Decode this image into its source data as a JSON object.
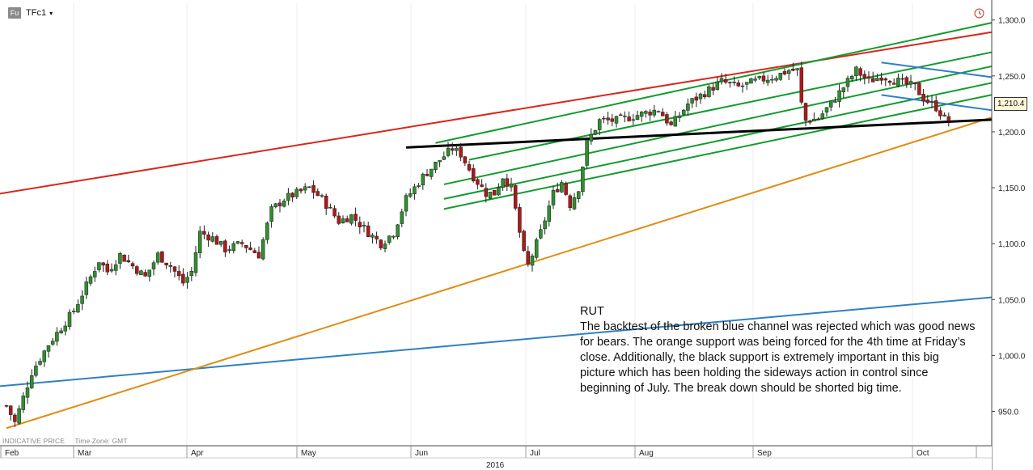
{
  "toolbar": {
    "badge": "Fu",
    "symbol": "TFc1",
    "caret": "▾",
    "clock_icon": "clock-icon"
  },
  "footer": {
    "indicative": "INDICATIVE PRICE",
    "timezone": "Time Zone: GMT"
  },
  "price_tag": "1,210.4",
  "annotation": {
    "title": "RUT",
    "body": "The backtest of the broken blue channel was rejected which was good news for bears. The orange support was being forced for the 4th time at Friday’s close. Additionally, the black support is extremely important in this big picture which has been holding the sideways action in control since beginning of July. The break down should be shorted big time."
  },
  "colors": {
    "up": "#2f8f2f",
    "down": "#b01818",
    "red_line": "#d8261c",
    "green_lines": "#139a2e",
    "blue_lines": "#2f7fc4",
    "orange_line": "#e08c12",
    "black_line": "#000000",
    "axis": "#444444"
  },
  "chart_data": {
    "type": "candlestick",
    "year_label": "2016",
    "x_month_labels": [
      "Feb",
      "Mar",
      "Apr",
      "May",
      "Jun",
      "Jul",
      "Aug",
      "Sep",
      "Oct"
    ],
    "y_tick_labels": [
      "1,300.0",
      "1,250.0",
      "1,200.0",
      "1,150.0",
      "1,100.0",
      "1,050.0",
      "1,000.0",
      "950.0"
    ],
    "y_ticks": [
      1300,
      1250,
      1200,
      1150,
      1100,
      1050,
      1000,
      950
    ],
    "ylim": [
      920,
      1315
    ],
    "last_price": 1210.4,
    "close_path": [
      [
        0,
        955
      ],
      [
        2,
        940
      ],
      [
        6,
        985
      ],
      [
        10,
        1010
      ],
      [
        16,
        1040
      ],
      [
        20,
        1070
      ],
      [
        22,
        1085
      ],
      [
        24,
        1075
      ],
      [
        27,
        1090
      ],
      [
        30,
        1080
      ],
      [
        33,
        1070
      ],
      [
        36,
        1090
      ],
      [
        39,
        1080
      ],
      [
        42,
        1065
      ],
      [
        44,
        1075
      ],
      [
        46,
        1110
      ],
      [
        49,
        1105
      ],
      [
        52,
        1095
      ],
      [
        56,
        1100
      ],
      [
        60,
        1090
      ],
      [
        63,
        1130
      ],
      [
        66,
        1140
      ],
      [
        69,
        1145
      ],
      [
        72,
        1150
      ],
      [
        75,
        1140
      ],
      [
        79,
        1120
      ],
      [
        82,
        1125
      ],
      [
        86,
        1110
      ],
      [
        89,
        1100
      ],
      [
        92,
        1110
      ],
      [
        95,
        1140
      ],
      [
        99,
        1160
      ],
      [
        103,
        1175
      ],
      [
        106,
        1185
      ],
      [
        108,
        1180
      ],
      [
        111,
        1160
      ],
      [
        114,
        1145
      ],
      [
        116,
        1145
      ],
      [
        118,
        1160
      ],
      [
        120,
        1150
      ],
      [
        122,
        1110
      ],
      [
        123,
        1090
      ],
      [
        124,
        1080
      ],
      [
        127,
        1110
      ],
      [
        130,
        1145
      ],
      [
        132,
        1155
      ],
      [
        134,
        1135
      ],
      [
        136,
        1150
      ],
      [
        138,
        1190
      ],
      [
        141,
        1210
      ],
      [
        145,
        1210
      ],
      [
        150,
        1215
      ],
      [
        155,
        1220
      ],
      [
        158,
        1205
      ],
      [
        162,
        1225
      ],
      [
        166,
        1235
      ],
      [
        170,
        1245
      ],
      [
        174,
        1240
      ],
      [
        178,
        1245
      ],
      [
        183,
        1250
      ],
      [
        186,
        1255
      ],
      [
        188,
        1255
      ],
      [
        189,
        1225
      ],
      [
        190,
        1210
      ],
      [
        193,
        1212
      ],
      [
        196,
        1225
      ],
      [
        199,
        1240
      ],
      [
        202,
        1255
      ],
      [
        205,
        1245
      ],
      [
        208,
        1250
      ],
      [
        212,
        1245
      ],
      [
        216,
        1240
      ],
      [
        218,
        1230
      ],
      [
        221,
        1222
      ],
      [
        223,
        1212
      ],
      [
        224,
        1210.4
      ]
    ],
    "lines": [
      {
        "name": "red-resistance",
        "color": "red_line",
        "points": [
          [
            -6,
            1142
          ],
          [
            252,
            1300
          ]
        ]
      },
      {
        "name": "green-channel-1",
        "color": "green_lines",
        "points": [
          [
            102,
            1190
          ],
          [
            252,
            1312
          ]
        ]
      },
      {
        "name": "green-channel-2",
        "color": "green_lines",
        "points": [
          [
            110,
            1175
          ],
          [
            252,
            1285
          ]
        ]
      },
      {
        "name": "green-channel-3",
        "color": "green_lines",
        "points": [
          [
            104,
            1153
          ],
          [
            252,
            1273
          ]
        ]
      },
      {
        "name": "green-channel-4",
        "color": "green_lines",
        "points": [
          [
            104,
            1140
          ],
          [
            252,
            1258
          ]
        ]
      },
      {
        "name": "green-channel-5",
        "color": "green_lines",
        "points": [
          [
            104,
            1131
          ],
          [
            252,
            1247
          ]
        ]
      },
      {
        "name": "blue-channel-upper",
        "color": "blue_lines",
        "points": [
          [
            208,
            1262
          ],
          [
            252,
            1240
          ]
        ]
      },
      {
        "name": "blue-channel-lower",
        "color": "blue_lines",
        "points": [
          [
            208,
            1233
          ],
          [
            252,
            1210
          ]
        ]
      },
      {
        "name": "blue-long-trend",
        "color": "blue_lines",
        "points": [
          [
            -6,
            971
          ],
          [
            252,
            1058
          ]
        ]
      },
      {
        "name": "orange-support",
        "color": "orange_line",
        "points": [
          [
            0,
            935
          ],
          [
            252,
            1234
          ]
        ]
      },
      {
        "name": "black-support",
        "color": "black_line",
        "points": [
          [
            95,
            1186
          ],
          [
            246,
            1213
          ]
        ]
      }
    ]
  }
}
